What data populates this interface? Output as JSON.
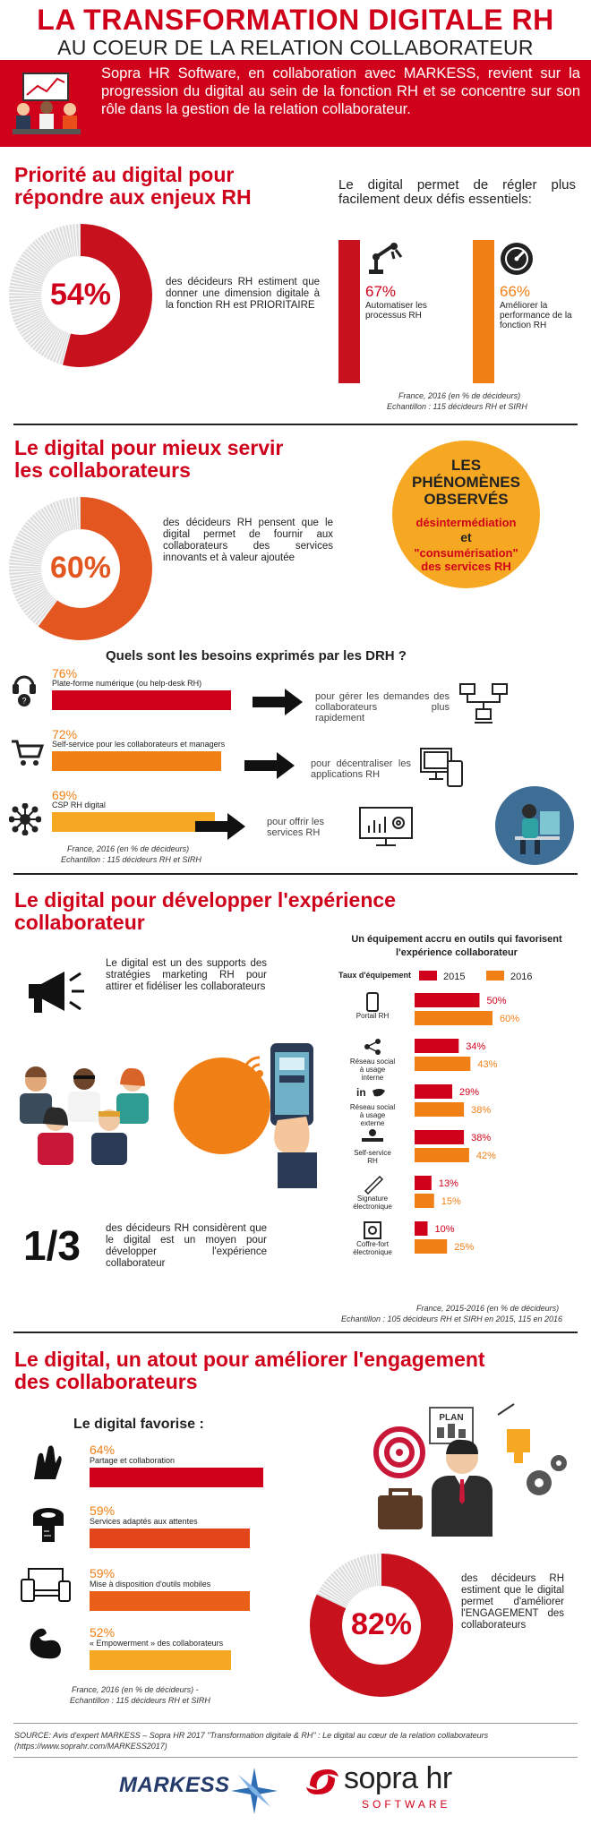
{
  "header": {
    "title": "LA TRANSFORMATION DIGITALE RH",
    "subtitle": "AU COEUR DE LA RELATION COLLABORATEUR",
    "intro": "Sopra HR Software, en collaboration avec MARKESS, revient sur la progression du digital au sein de la fonction RH et se concentre sur son rôle dans la gestion de la relation collaborateur."
  },
  "s1": {
    "title_line1": "Priorité au digital pour",
    "title_line2": "répondre aux enjeux RH",
    "donut_value": "54%",
    "donut_fraction": 0.54,
    "donut_text": "des décideurs RH estiment que donner une dimension digitale à la fonction RH est PRIORITAIRE",
    "right_intro": "Le digital permet de régler plus facilement deux défis essentiels:",
    "stat1_value": "67%",
    "stat1_label": "Automatiser les processus RH",
    "stat2_value": "66%",
    "stat2_label": "Améliorer la performance de la fonction RH",
    "source1": "France, 2016 (en % de décideurs)",
    "source2": "Echantillon : 115 décideurs RH et SIRH"
  },
  "s2": {
    "title_line1": "Le digital pour mieux servir",
    "title_line2": "les collaborateurs",
    "bubble_title": "LES PHÉNOMÈNES OBSERVÉS",
    "bubble_item1": "désintermédiation",
    "bubble_and": "et",
    "bubble_item2": "\"consumérisation\" des services RH",
    "donut_value": "60%",
    "donut_fraction": 0.6,
    "donut_text": "des décideurs RH pensent que le digital permet de fournir aux collaborateurs des services innovants et à valeur ajoutée",
    "question": "Quels sont les besoins exprimés par les DRH ?",
    "needs": [
      {
        "value": "76%",
        "fraction": 0.76,
        "label": "Plate-forme numérique (ou help-desk RH)",
        "result": "pour gérer les demandes des collaborateurs plus rapidement",
        "icon": "headset-icon"
      },
      {
        "value": "72%",
        "fraction": 0.72,
        "label": "Self-service pour les collaborateurs et managers",
        "result": "pour décentraliser les applications RH",
        "icon": "cart-icon"
      },
      {
        "value": "69%",
        "fraction": 0.69,
        "label": "CSP RH digital",
        "result": "pour offrir les services RH",
        "icon": "network-icon"
      }
    ],
    "source1": "France, 2016 (en % de décideurs)",
    "source2": "Echantillon : 115 décideurs RH et SIRH"
  },
  "s3": {
    "title_line1": "Le digital pour développer l'expérience",
    "title_line2": "collaborateur",
    "text1": "Le digital est un des supports des stratégies marketing RH pour attirer et fidéliser les collaborateurs",
    "fraction_value": "1/3",
    "text2": "des décideurs RH considèrent que le digital est un moyen pour développer l'expérience collaborateur",
    "chart_title": "Un équipement accru en outils qui favorisent l'expérience collaborateur",
    "source1": "France, 2015-2016 (en % de décideurs)",
    "source2": "Echantillon : 105 décideurs RH et SIRH en 2015, 115 en 2016"
  },
  "chart_data": {
    "type": "bar",
    "title": "Un équipement accru en outils qui favorisent l'expérience collaborateur",
    "xlabel": "Taux d'équipement",
    "categories": [
      "Portail RH",
      "Réseau social à usage interne",
      "Réseau social à usage externe",
      "Self-service RH",
      "Signature électronique",
      "Coffre-fort électronique"
    ],
    "series": [
      {
        "name": "2015",
        "values": [
          50,
          34,
          29,
          38,
          13,
          10
        ],
        "labels": [
          "50%",
          "34%",
          "29%",
          "38%",
          "13%",
          "10%"
        ]
      },
      {
        "name": "2016",
        "values": [
          60,
          43,
          38,
          42,
          15,
          25
        ],
        "labels": [
          "60%",
          "43%",
          "38%",
          "42%",
          "15%",
          "25%"
        ]
      }
    ],
    "colors": {
      "2015": "#d0021b",
      "2016": "#f07f16"
    }
  },
  "s4": {
    "title_line1": "Le digital, un atout pour améliorer l'engagement",
    "title_line2": "des collaborateurs",
    "subtitle": "Le digital favorise :",
    "items": [
      {
        "value": "64%",
        "fraction": 0.64,
        "label": "Partage et collaboration",
        "color": "#d0021b",
        "icon": "high-five-icon"
      },
      {
        "value": "59%",
        "fraction": 0.59,
        "label": "Services adaptés aux attentes",
        "color": "#e2461a",
        "icon": "measuring-tape-icon"
      },
      {
        "value": "59%",
        "fraction": 0.59,
        "label": "Mise à disposition d'outils mobiles",
        "color": "#ea5f18",
        "icon": "devices-icon"
      },
      {
        "value": "52%",
        "fraction": 0.52,
        "label": "« Empowerment » des collaborateurs",
        "color": "#f7a823",
        "icon": "biceps-icon"
      }
    ],
    "plan_label": "PLAN",
    "donut_value": "82%",
    "donut_fraction": 0.82,
    "donut_text": "des décideurs RH estiment que le digital permet d'améliorer l'ENGAGEMENT des collaborateurs",
    "source1": "France, 2016 (en % de décideurs) -",
    "source2": "Echantillon : 115 décideurs RH et SIRH"
  },
  "footer": {
    "source_line1": "SOURCE: Avis d'expert MARKESS – Sopra HR 2017 \"Transformation digitale & RH\" : Le digital au cœur de la relation collaborateurs",
    "source_line2": "(https://www.soprahr.com/MARKESS2017)",
    "logo1": "MARKESS",
    "logo2_main": "sopra hr",
    "logo2_sub": "SOFTWARE"
  },
  "colors": {
    "red": "#d0021b",
    "orange": "#f07f16",
    "dark": "#222222"
  }
}
